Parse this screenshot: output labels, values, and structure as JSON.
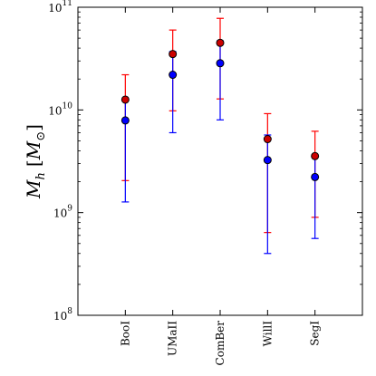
{
  "chart_data": {
    "type": "scatter",
    "y_scale": "log",
    "ylim": [
      100000000,
      100000000000
    ],
    "ylabel": "M_h [M_⊙]",
    "ylabel_parts": {
      "main": "M",
      "sub": "h",
      "bracket_open": "[",
      "inner": "M",
      "inner_sub": "⊙",
      "bracket_close": "]"
    },
    "y_ticks": [
      {
        "value": 100000000,
        "base": "10",
        "exp": "8"
      },
      {
        "value": 1000000000,
        "base": "10",
        "exp": "9"
      },
      {
        "value": 10000000000,
        "base": "10",
        "exp": "10"
      },
      {
        "value": 100000000000,
        "base": "10",
        "exp": "11"
      }
    ],
    "categories": [
      "BooI",
      "UMaII",
      "ComBer",
      "WillI",
      "SegI"
    ],
    "grid": false,
    "series": [
      {
        "color": "#ff0000",
        "marker_fill": "#cc0000",
        "values": [
          12600000000,
          35000000000,
          45000000000,
          5200000000,
          3550000000
        ],
        "err_upper": [
          22000000000,
          60000000000,
          78000000000,
          9200000000,
          6200000000
        ],
        "err_lower": [
          2050000000,
          9800000000,
          12800000000,
          640000000,
          900000000
        ]
      },
      {
        "color": "#0000ff",
        "marker_fill": "#0000ff",
        "values": [
          7900000000,
          22000000000,
          28500000000,
          3250000000,
          2220000000
        ],
        "err_upper": [
          12500000000,
          37000000000,
          47000000000,
          5700000000,
          3500000000
        ],
        "err_lower": [
          1270000000,
          6000000000,
          8000000000,
          400000000,
          560000000
        ]
      }
    ]
  }
}
